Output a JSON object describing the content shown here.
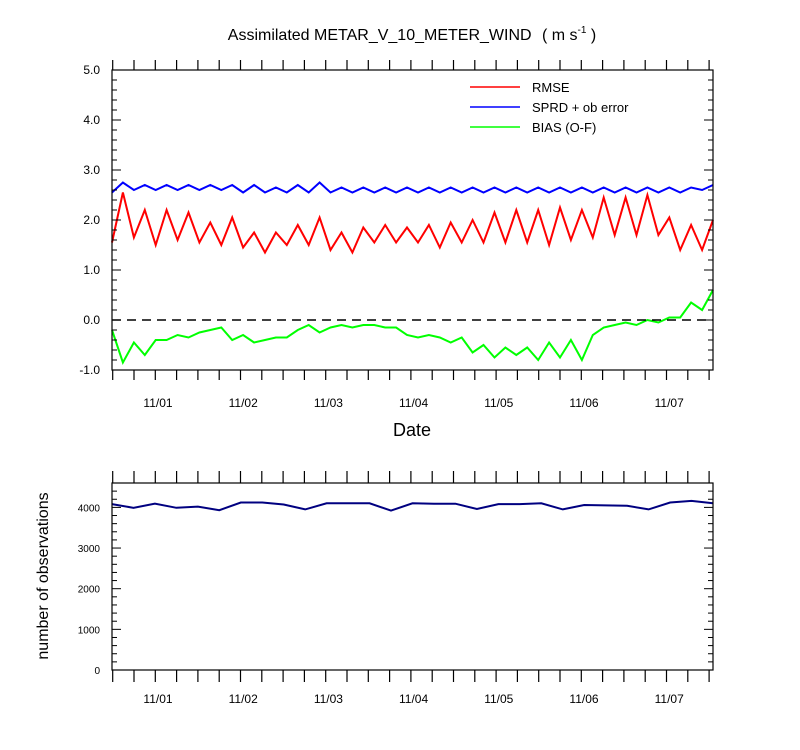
{
  "chart_data": [
    {
      "type": "line",
      "title": "Assimilated METAR_V_10_METER_WIND",
      "title_units": "( m s",
      "title_units_exp": "-1",
      "title_units_close": " )",
      "xlabel": "Date",
      "ylabel": "",
      "ylim": [
        -1.0,
        5.0
      ],
      "yticks": [
        "-1.0",
        "0.0",
        "1.0",
        "2.0",
        "3.0",
        "4.0",
        "5.0"
      ],
      "xticklabels": [
        "11/01",
        "11/02",
        "11/03",
        "11/04",
        "11/05",
        "11/06",
        "11/07"
      ],
      "zero_line": "dashed",
      "legend_position": "top-right",
      "series": [
        {
          "name": "RMSE",
          "color": "#ff0000",
          "pairs": [
            [
              1.55,
              2.55
            ],
            [
              1.65,
              2.2
            ],
            [
              1.5,
              2.2
            ],
            [
              1.6,
              2.15
            ],
            [
              1.55,
              1.95
            ],
            [
              1.5,
              2.05
            ],
            [
              1.45,
              1.75
            ],
            [
              1.35,
              1.75
            ],
            [
              1.5,
              1.9
            ],
            [
              1.5,
              2.05
            ],
            [
              1.4,
              1.75
            ],
            [
              1.35,
              1.85
            ],
            [
              1.55,
              1.9
            ],
            [
              1.55,
              1.85
            ],
            [
              1.55,
              1.9
            ],
            [
              1.45,
              1.95
            ],
            [
              1.55,
              2.0
            ],
            [
              1.55,
              2.15
            ],
            [
              1.55,
              2.2
            ],
            [
              1.55,
              2.2
            ],
            [
              1.5,
              2.25
            ],
            [
              1.6,
              2.2
            ],
            [
              1.65,
              2.45
            ],
            [
              1.7,
              2.45
            ],
            [
              1.7,
              2.5
            ],
            [
              1.7,
              2.05
            ],
            [
              1.4,
              1.9
            ],
            [
              1.4,
              2.0
            ]
          ]
        },
        {
          "name": "SPRD + ob error",
          "color": "#0000ff",
          "pairs": [
            [
              2.55,
              2.75
            ],
            [
              2.6,
              2.7
            ],
            [
              2.6,
              2.7
            ],
            [
              2.6,
              2.7
            ],
            [
              2.6,
              2.7
            ],
            [
              2.6,
              2.7
            ],
            [
              2.55,
              2.7
            ],
            [
              2.55,
              2.65
            ],
            [
              2.55,
              2.7
            ],
            [
              2.55,
              2.75
            ],
            [
              2.55,
              2.65
            ],
            [
              2.55,
              2.65
            ],
            [
              2.55,
              2.65
            ],
            [
              2.55,
              2.65
            ],
            [
              2.55,
              2.65
            ],
            [
              2.55,
              2.65
            ],
            [
              2.55,
              2.65
            ],
            [
              2.55,
              2.65
            ],
            [
              2.55,
              2.65
            ],
            [
              2.55,
              2.65
            ],
            [
              2.55,
              2.65
            ],
            [
              2.55,
              2.65
            ],
            [
              2.55,
              2.65
            ],
            [
              2.55,
              2.65
            ],
            [
              2.55,
              2.65
            ],
            [
              2.55,
              2.65
            ],
            [
              2.55,
              2.65
            ],
            [
              2.6,
              2.7
            ]
          ]
        },
        {
          "name": "BIAS (O-F)",
          "color": "#00ff00",
          "pairs": [
            [
              -0.2,
              -0.85
            ],
            [
              -0.45,
              -0.7
            ],
            [
              -0.4,
              -0.4
            ],
            [
              -0.3,
              -0.35
            ],
            [
              -0.25,
              -0.2
            ],
            [
              -0.15,
              -0.4
            ],
            [
              -0.3,
              -0.45
            ],
            [
              -0.4,
              -0.35
            ],
            [
              -0.35,
              -0.2
            ],
            [
              -0.1,
              -0.25
            ],
            [
              -0.15,
              -0.1
            ],
            [
              -0.15,
              -0.1
            ],
            [
              -0.1,
              -0.15
            ],
            [
              -0.15,
              -0.3
            ],
            [
              -0.35,
              -0.3
            ],
            [
              -0.35,
              -0.45
            ],
            [
              -0.35,
              -0.65
            ],
            [
              -0.5,
              -0.75
            ],
            [
              -0.55,
              -0.7
            ],
            [
              -0.55,
              -0.8
            ],
            [
              -0.45,
              -0.75
            ],
            [
              -0.4,
              -0.8
            ],
            [
              -0.3,
              -0.15
            ],
            [
              -0.1,
              -0.05
            ],
            [
              -0.1,
              0.0
            ],
            [
              -0.05,
              0.05
            ],
            [
              0.05,
              0.35
            ],
            [
              0.2,
              0.6
            ]
          ]
        }
      ]
    },
    {
      "type": "line",
      "title": "",
      "xlabel": "",
      "ylabel": "number of observations",
      "ylim": [
        0,
        4600
      ],
      "yticks": [
        "0",
        "1000",
        "2000",
        "3000",
        "4000"
      ],
      "xticklabels": [
        "11/01",
        "11/02",
        "11/03",
        "11/04",
        "11/05",
        "11/06",
        "11/07"
      ],
      "series": [
        {
          "color": "#000080",
          "values": [
            4080,
            3990,
            4090,
            3990,
            4020,
            3930,
            4120,
            4120,
            4070,
            3950,
            4100,
            4100,
            4100,
            3920,
            4100,
            4090,
            4090,
            3960,
            4080,
            4080,
            4100,
            3950,
            4060,
            4050,
            4040,
            3950,
            4120,
            4160,
            4100
          ]
        }
      ]
    }
  ]
}
